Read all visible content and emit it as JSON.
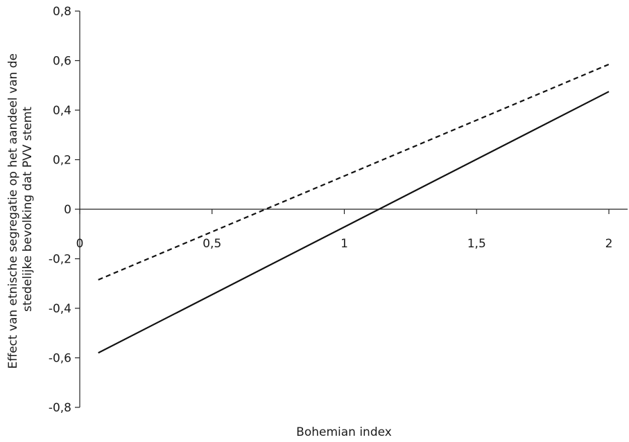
{
  "chart_data": {
    "type": "line",
    "xlabel": "Bohemian index",
    "ylabel_lines": [
      "Effect van etnische segregatie op het aandeel van de",
      "stedelijke bevolking dat PVV stemt"
    ],
    "xlim": [
      0,
      2
    ],
    "ylim": [
      -0.8,
      0.8
    ],
    "x_ticks": [
      0,
      0.5,
      1,
      1.5,
      2
    ],
    "x_tick_labels": [
      "0",
      "0,5",
      "1",
      "1,5",
      "2"
    ],
    "y_ticks": [
      0.8,
      0.6,
      0.4,
      0.2,
      0,
      -0.2,
      -0.4,
      -0.6,
      -0.8
    ],
    "y_tick_labels": [
      "0,8",
      "0,6",
      "0,4",
      "0,2",
      "0",
      "-0,2",
      "-0,4",
      "-0,6",
      "-0,8"
    ],
    "grid": false,
    "series": [
      {
        "style": "dashed",
        "x": [
          0.07,
          2.0
        ],
        "y": [
          -0.285,
          0.585
        ]
      },
      {
        "style": "solid",
        "x": [
          0.07,
          2.0
        ],
        "y": [
          -0.58,
          0.475
        ]
      }
    ]
  }
}
